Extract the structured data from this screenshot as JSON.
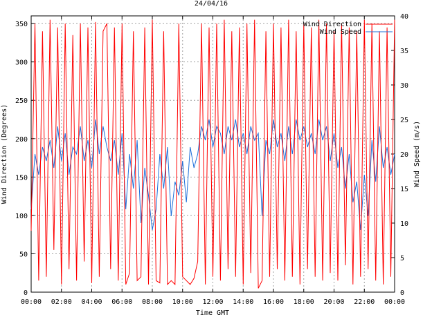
{
  "chart_data": {
    "type": "line",
    "title": "24/04/16",
    "xlabel": "Time GMT",
    "ylabel_left": "Wind Direction (Degrees)",
    "ylabel_right": "Wind Speed (m/s)",
    "x_ticks": [
      "00:00",
      "02:00",
      "04:00",
      "06:00",
      "08:00",
      "10:00",
      "12:00",
      "14:00",
      "16:00",
      "18:00",
      "20:00",
      "22:00",
      "00:00"
    ],
    "xlim_hours": [
      0,
      24
    ],
    "ylim_left": [
      0,
      360
    ],
    "y_ticks_left": [
      0,
      50,
      100,
      150,
      200,
      250,
      300,
      350
    ],
    "ylim_right": [
      0,
      40
    ],
    "y_ticks_right": [
      0,
      5,
      10,
      15,
      20,
      25,
      30,
      35,
      40
    ],
    "grid": true,
    "legend_position": "top-right",
    "series": [
      {
        "name": "Wind Direction",
        "axis": "left",
        "color": "#ff0000",
        "x_hours": [
          0,
          0.25,
          0.5,
          0.75,
          1,
          1.25,
          1.5,
          1.75,
          2,
          2.25,
          2.5,
          2.75,
          3,
          3.25,
          3.5,
          3.75,
          4,
          4.25,
          4.5,
          4.75,
          5,
          5.25,
          5.5,
          5.75,
          6,
          6.25,
          6.5,
          6.75,
          7,
          7.25,
          7.5,
          7.75,
          8,
          8.25,
          8.5,
          8.75,
          9,
          9.25,
          9.5,
          9.75,
          10,
          10.25,
          10.5,
          10.75,
          11,
          11.25,
          11.5,
          11.75,
          12,
          12.25,
          12.5,
          12.75,
          13,
          13.25,
          13.5,
          13.75,
          14,
          14.25,
          14.5,
          14.75,
          15,
          15.25,
          15.5,
          15.75,
          16,
          16.25,
          16.5,
          16.75,
          17,
          17.25,
          17.5,
          17.75,
          18,
          18.25,
          18.5,
          18.75,
          19,
          19.25,
          19.5,
          19.75,
          20,
          20.25,
          20.5,
          20.75,
          21,
          21.25,
          21.5,
          21.75,
          22,
          22.25,
          22.5,
          22.75,
          23,
          23.25,
          23.5,
          23.75,
          24
        ],
        "values": [
          80,
          350,
          15,
          340,
          20,
          355,
          55,
          345,
          10,
          350,
          30,
          335,
          15,
          350,
          40,
          345,
          12,
          352,
          20,
          340,
          350,
          30,
          345,
          15,
          350,
          10,
          25,
          340,
          15,
          20,
          345,
          10,
          355,
          15,
          12,
          340,
          10,
          15,
          10,
          350,
          20,
          15,
          10,
          18,
          40,
          350,
          10,
          345,
          20,
          350,
          15,
          355,
          30,
          340,
          20,
          345,
          10,
          350,
          25,
          355,
          5,
          15,
          340,
          20,
          350,
          30,
          345,
          15,
          355,
          20,
          340,
          10,
          350,
          30,
          345,
          20,
          355,
          15,
          350,
          25,
          340,
          15,
          350,
          35,
          345,
          10,
          340,
          20,
          355,
          30,
          350,
          15,
          340,
          10,
          345,
          20,
          355
        ]
      },
      {
        "name": "Wind Speed",
        "axis": "right",
        "color": "#1e6fd9",
        "x_hours": [
          0,
          0.25,
          0.5,
          0.75,
          1,
          1.25,
          1.5,
          1.75,
          2,
          2.25,
          2.5,
          2.75,
          3,
          3.25,
          3.5,
          3.75,
          4,
          4.25,
          4.5,
          4.75,
          5,
          5.25,
          5.5,
          5.75,
          6,
          6.25,
          6.5,
          6.75,
          7,
          7.25,
          7.5,
          7.75,
          8,
          8.25,
          8.5,
          8.75,
          9,
          9.25,
          9.5,
          9.75,
          10,
          10.25,
          10.5,
          10.75,
          11,
          11.25,
          11.5,
          11.75,
          12,
          12.25,
          12.5,
          12.75,
          13,
          13.25,
          13.5,
          13.75,
          14,
          14.25,
          14.5,
          14.75,
          15,
          15.25,
          15.5,
          15.75,
          16,
          16.25,
          16.5,
          16.75,
          17,
          17.25,
          17.5,
          17.75,
          18,
          18.25,
          18.5,
          18.75,
          19,
          19.25,
          19.5,
          19.75,
          20,
          20.25,
          20.5,
          20.75,
          21,
          21.25,
          21.5,
          21.75,
          22,
          22.25,
          22.5,
          22.75,
          23,
          23.25,
          23.5,
          23.75,
          24
        ],
        "values": [
          12,
          20,
          17,
          21,
          19,
          22,
          18,
          24,
          19,
          23,
          17,
          21,
          20,
          24,
          19,
          22,
          18,
          25,
          20,
          24,
          21,
          19,
          22,
          17,
          23,
          12,
          20,
          15,
          22,
          10,
          18,
          14,
          9,
          12,
          20,
          15,
          21,
          11,
          16,
          14,
          19,
          13,
          21,
          18,
          20,
          24,
          22,
          25,
          21,
          24,
          23,
          20,
          24,
          22,
          25,
          21,
          23,
          20,
          24,
          22,
          23,
          11,
          22,
          20,
          25,
          21,
          23,
          19,
          24,
          20,
          25,
          22,
          24,
          21,
          23,
          20,
          25,
          22,
          24,
          19,
          23,
          18,
          21,
          15,
          20,
          13,
          16,
          9,
          17,
          11,
          22,
          16,
          24,
          18,
          21,
          17,
          20
        ]
      }
    ]
  }
}
